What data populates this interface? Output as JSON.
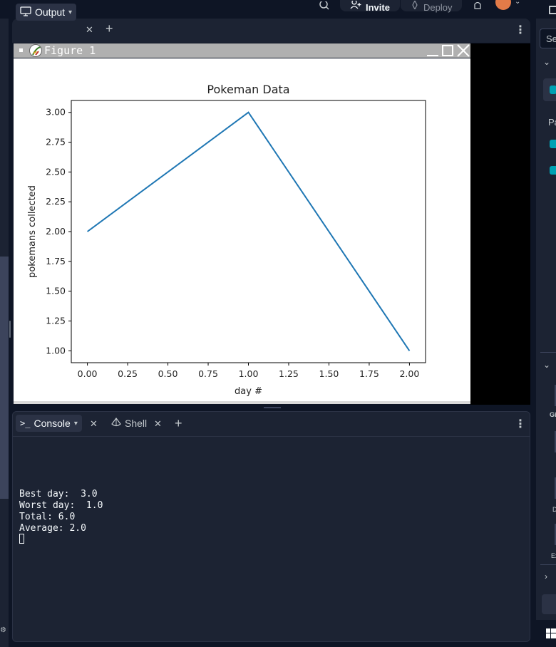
{
  "topbar": {
    "invite_label": "Invite",
    "deploy_label": "Deploy"
  },
  "output_pane": {
    "tab_label": "Output"
  },
  "figure_window": {
    "title": "Figure 1"
  },
  "chart_data": {
    "type": "line",
    "title": "Pokeman Data",
    "xlabel": "day #",
    "ylabel": "pokemans collected",
    "x": [
      0,
      1,
      2
    ],
    "series": [
      {
        "values": [
          2.0,
          3.0,
          1.0
        ],
        "color": "#1f77b4"
      }
    ],
    "xlim": [
      -0.1,
      2.1
    ],
    "ylim": [
      0.9,
      3.1
    ],
    "xticks": [
      "0.00",
      "0.25",
      "0.50",
      "0.75",
      "1.00",
      "1.25",
      "1.50",
      "1.75",
      "2.00"
    ],
    "yticks": [
      "1.00",
      "1.25",
      "1.50",
      "1.75",
      "2.00",
      "2.25",
      "2.50",
      "2.75",
      "3.00"
    ],
    "grid": false
  },
  "console_pane": {
    "tabs": [
      {
        "label": "Console"
      },
      {
        "label": "Shell"
      }
    ],
    "output_lines": [
      "Best day:  3.0",
      "Worst day:  1.0",
      "Total: 6.0",
      "Average: 2.0"
    ]
  },
  "right_sidebar": {
    "search_partial": "Se",
    "packages_partial": "Pa",
    "label_partial_1": "Gi",
    "label_partial_2": "D",
    "label_partial_3": "Ex"
  },
  "colors": {
    "app_bg": "#0e1525",
    "panel_bg": "#1c2333",
    "line_color": "#1f77b4",
    "accent": "#00a1b3"
  }
}
